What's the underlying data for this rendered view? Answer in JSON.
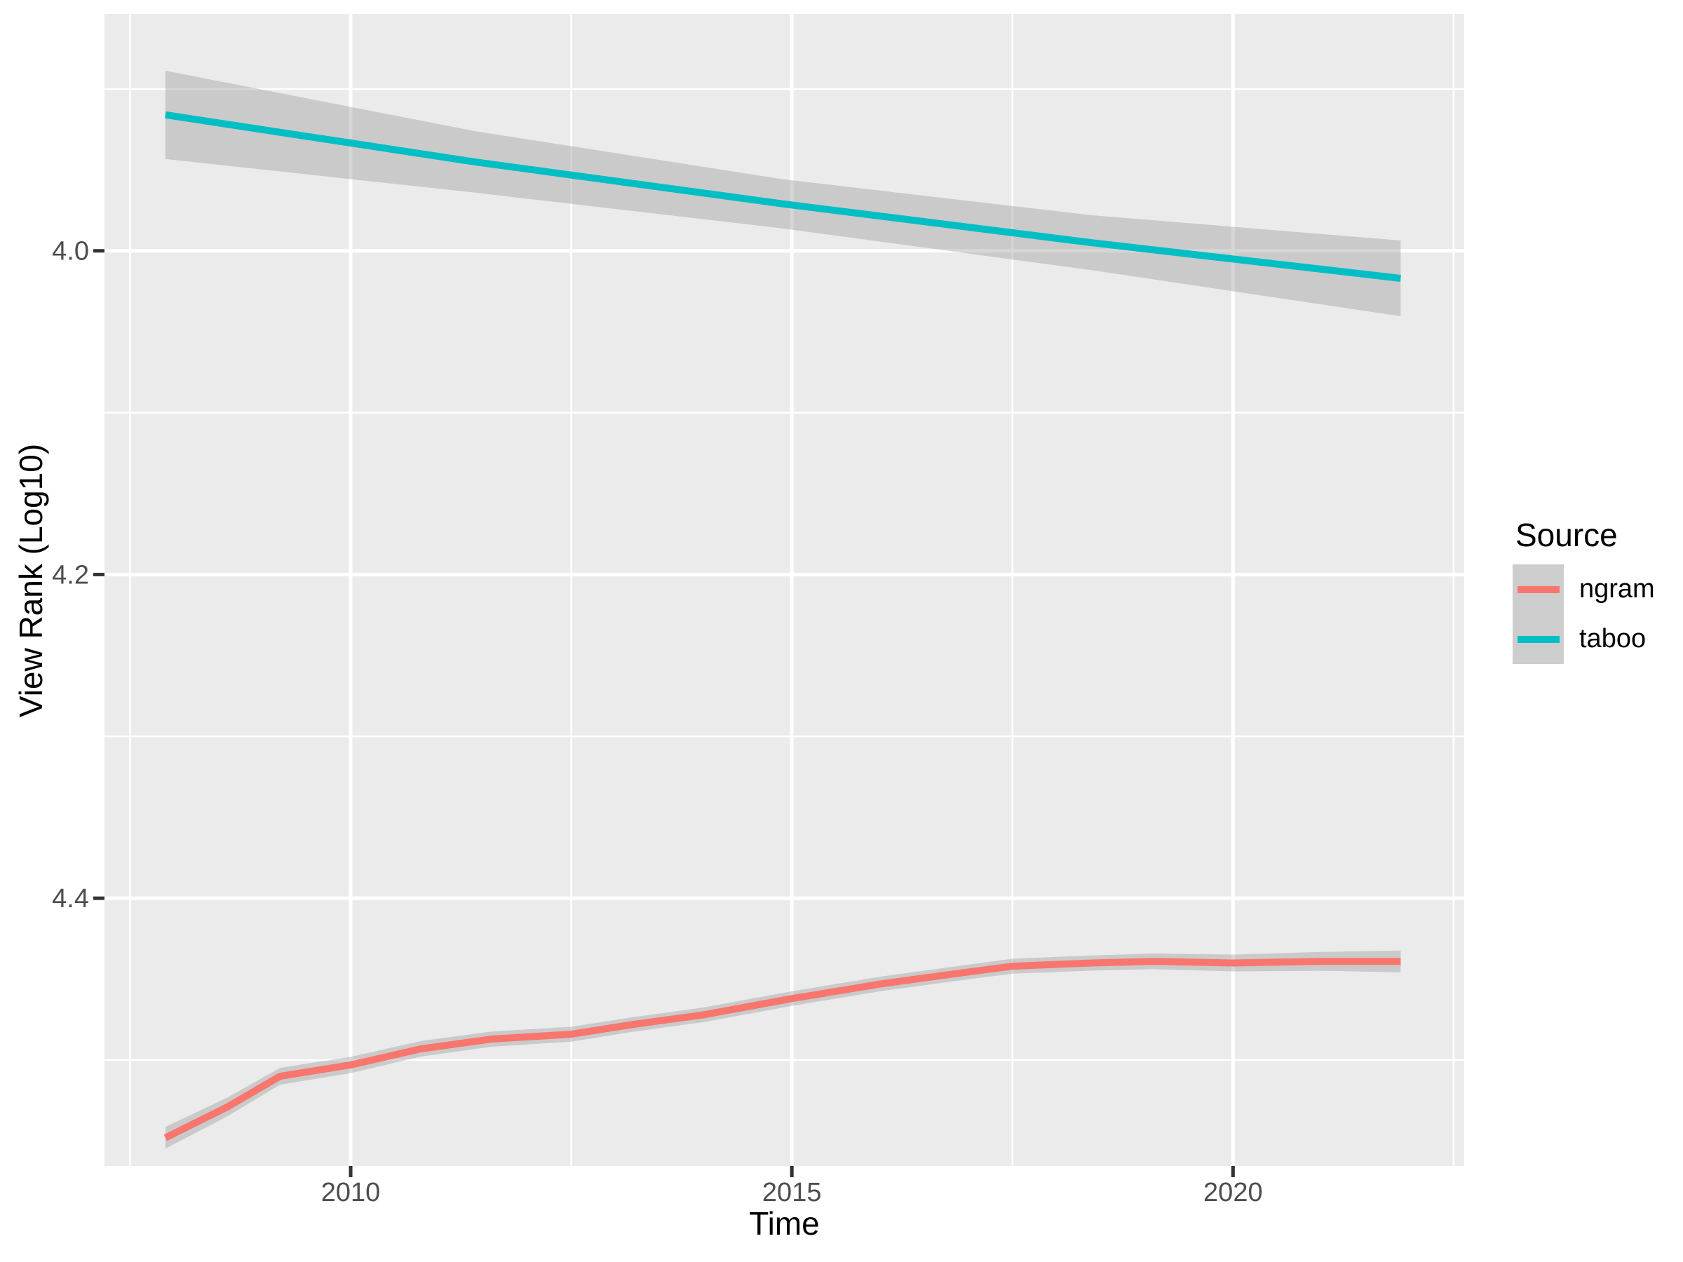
{
  "chart_data": {
    "type": "line",
    "title": "",
    "xlabel": "Time",
    "ylabel": "View Rank (Log10)",
    "x_ticks": [
      2010,
      2015,
      2020
    ],
    "x_minor_ticks": [
      2007.5,
      2012.5,
      2017.5,
      2022.5
    ],
    "y_ticks": [
      "4.0",
      "4.2",
      "4.4"
    ],
    "y_tick_values": [
      4.0,
      4.2,
      4.4
    ],
    "y_minor_tick_values": [
      3.9,
      4.1,
      4.3,
      4.5
    ],
    "x_domain": [
      2007.21,
      2022.62
    ],
    "y_domain": [
      3.8537,
      4.5654
    ],
    "y_axis_reversed_increasing_downward": true,
    "grid": true,
    "legend": {
      "title": "Source",
      "position": "right",
      "entries": [
        {
          "label": "ngram",
          "color": "#F8766D"
        },
        {
          "label": "taboo",
          "color": "#00BFC4"
        }
      ]
    },
    "series": [
      {
        "name": "ngram",
        "color": "#F8766D",
        "smoothed": true,
        "x": [
          2007.9,
          2008.6,
          2009.2,
          2010.0,
          2010.8,
          2011.6,
          2012.5,
          2013.2,
          2014.0,
          2015.0,
          2016.0,
          2016.8,
          2017.5,
          2018.4,
          2019.1,
          2020.0,
          2021.0,
          2021.9
        ],
        "y": [
          4.548,
          4.529,
          4.51,
          4.503,
          4.493,
          4.487,
          4.484,
          4.478,
          4.472,
          4.462,
          4.453,
          4.447,
          4.442,
          4.44,
          4.439,
          4.44,
          4.439,
          4.439
        ],
        "ci": [
          0.0067,
          0.0058,
          0.0052,
          0.005,
          0.0048,
          0.0047,
          0.0046,
          0.0045,
          0.0045,
          0.0045,
          0.0045,
          0.0045,
          0.0046,
          0.0047,
          0.0048,
          0.0052,
          0.0058,
          0.0067
        ]
      },
      {
        "name": "taboo",
        "color": "#00BFC4",
        "smoothed": true,
        "x": [
          2007.9,
          2011.4,
          2014.9,
          2018.4,
          2021.9
        ],
        "y": [
          3.916,
          3.945,
          3.971,
          3.995,
          4.017
        ],
        "ci": [
          0.0273,
          0.019,
          0.0152,
          0.017,
          0.0234
        ]
      }
    ],
    "styles": {
      "panel_background": "#EBEBEB",
      "grid_color": "#FFFFFF",
      "ribbon_fill": "rgba(153,153,153,0.4)",
      "tick_text_color": "#4D4D4D",
      "tick_mark_color": "#333333",
      "line_width": 10
    }
  }
}
